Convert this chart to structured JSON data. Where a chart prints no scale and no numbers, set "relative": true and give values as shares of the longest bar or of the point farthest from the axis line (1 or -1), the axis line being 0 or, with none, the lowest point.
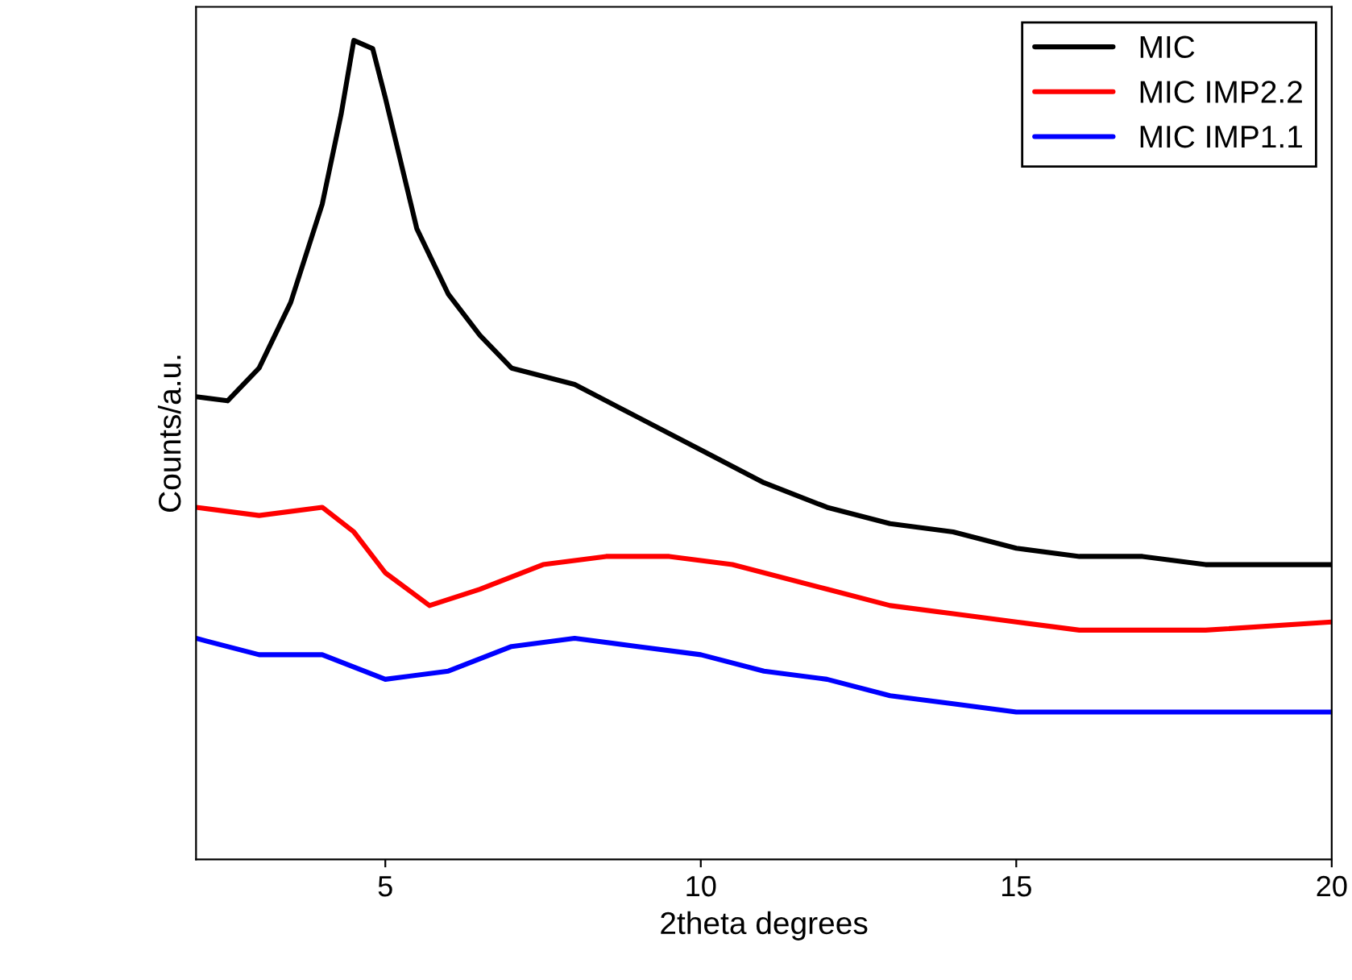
{
  "chart_data": {
    "type": "line",
    "xlabel": "2theta degrees",
    "ylabel": "Counts/a.u.",
    "relative": true,
    "xlim": [
      2,
      20
    ],
    "xticks": [
      5,
      10,
      15,
      20
    ],
    "grid": false,
    "legend": "top right",
    "series": [
      {
        "name": "MIC",
        "color": "#000000",
        "x": [
          2,
          2.5,
          3,
          3.5,
          4,
          4.3,
          4.5,
          4.8,
          5,
          5.5,
          6,
          6.5,
          7,
          8,
          9,
          10,
          11,
          12,
          13,
          14,
          15,
          16,
          17,
          18,
          19,
          20
        ],
        "values": [
          0.565,
          0.56,
          0.6,
          0.68,
          0.8,
          0.91,
          1.0,
          0.99,
          0.93,
          0.77,
          0.69,
          0.64,
          0.6,
          0.58,
          0.54,
          0.5,
          0.46,
          0.43,
          0.41,
          0.4,
          0.38,
          0.37,
          0.37,
          0.36,
          0.36,
          0.36
        ]
      },
      {
        "name": "MIC IMP2.2",
        "color": "#ff0000",
        "x": [
          2,
          3,
          4,
          4.5,
          5,
          5.7,
          6.5,
          7.5,
          8.5,
          9.5,
          10.5,
          12,
          13,
          14,
          15,
          16,
          18,
          20
        ],
        "values": [
          0.43,
          0.42,
          0.43,
          0.4,
          0.35,
          0.31,
          0.33,
          0.36,
          0.37,
          0.37,
          0.36,
          0.33,
          0.31,
          0.3,
          0.29,
          0.28,
          0.28,
          0.29
        ]
      },
      {
        "name": "MIC IMP1.1",
        "color": "#0000ff",
        "x": [
          2,
          3,
          4,
          5,
          6,
          7,
          8,
          9,
          10,
          11,
          12,
          13,
          14,
          15,
          17,
          20
        ],
        "values": [
          0.27,
          0.25,
          0.25,
          0.22,
          0.23,
          0.26,
          0.27,
          0.26,
          0.25,
          0.23,
          0.22,
          0.2,
          0.19,
          0.18,
          0.18,
          0.18
        ]
      }
    ]
  }
}
